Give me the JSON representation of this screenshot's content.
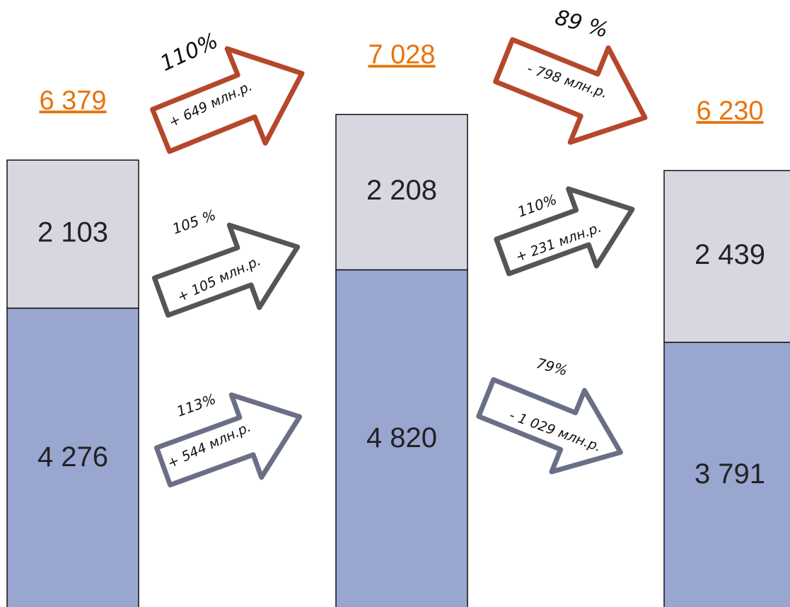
{
  "chart_data": {
    "type": "stacked-bar",
    "categories": [
      null,
      null,
      null
    ],
    "series": [
      {
        "color": "#98a6d0",
        "values": [
          4276,
          4820,
          3791
        ],
        "value_labels": [
          "4 276",
          "4 820",
          "3 791"
        ]
      },
      {
        "color": "#d6d7e0",
        "values": [
          2103,
          2208,
          2439
        ],
        "value_labels": [
          "2 103",
          "2 208",
          "2 439"
        ]
      }
    ],
    "totals": [
      6379,
      7028,
      6230
    ],
    "total_labels": [
      "6 379",
      "7 028",
      "6 230"
    ],
    "total_color": "#e8730c",
    "arrows": [
      {
        "percent": "110%",
        "change": "+ 649  млн.р."
      },
      {
        "percent": "105 %",
        "change": "+ 105  млн.р."
      },
      {
        "percent": "113%",
        "change": "+ 544 млн.р."
      },
      {
        "percent": "89 %",
        "change": "- 798  млн.р."
      },
      {
        "percent": "110%",
        "change": "+ 231 млн.р."
      },
      {
        "percent": "79%",
        "change": "- 1 029  млн.р."
      }
    ]
  }
}
